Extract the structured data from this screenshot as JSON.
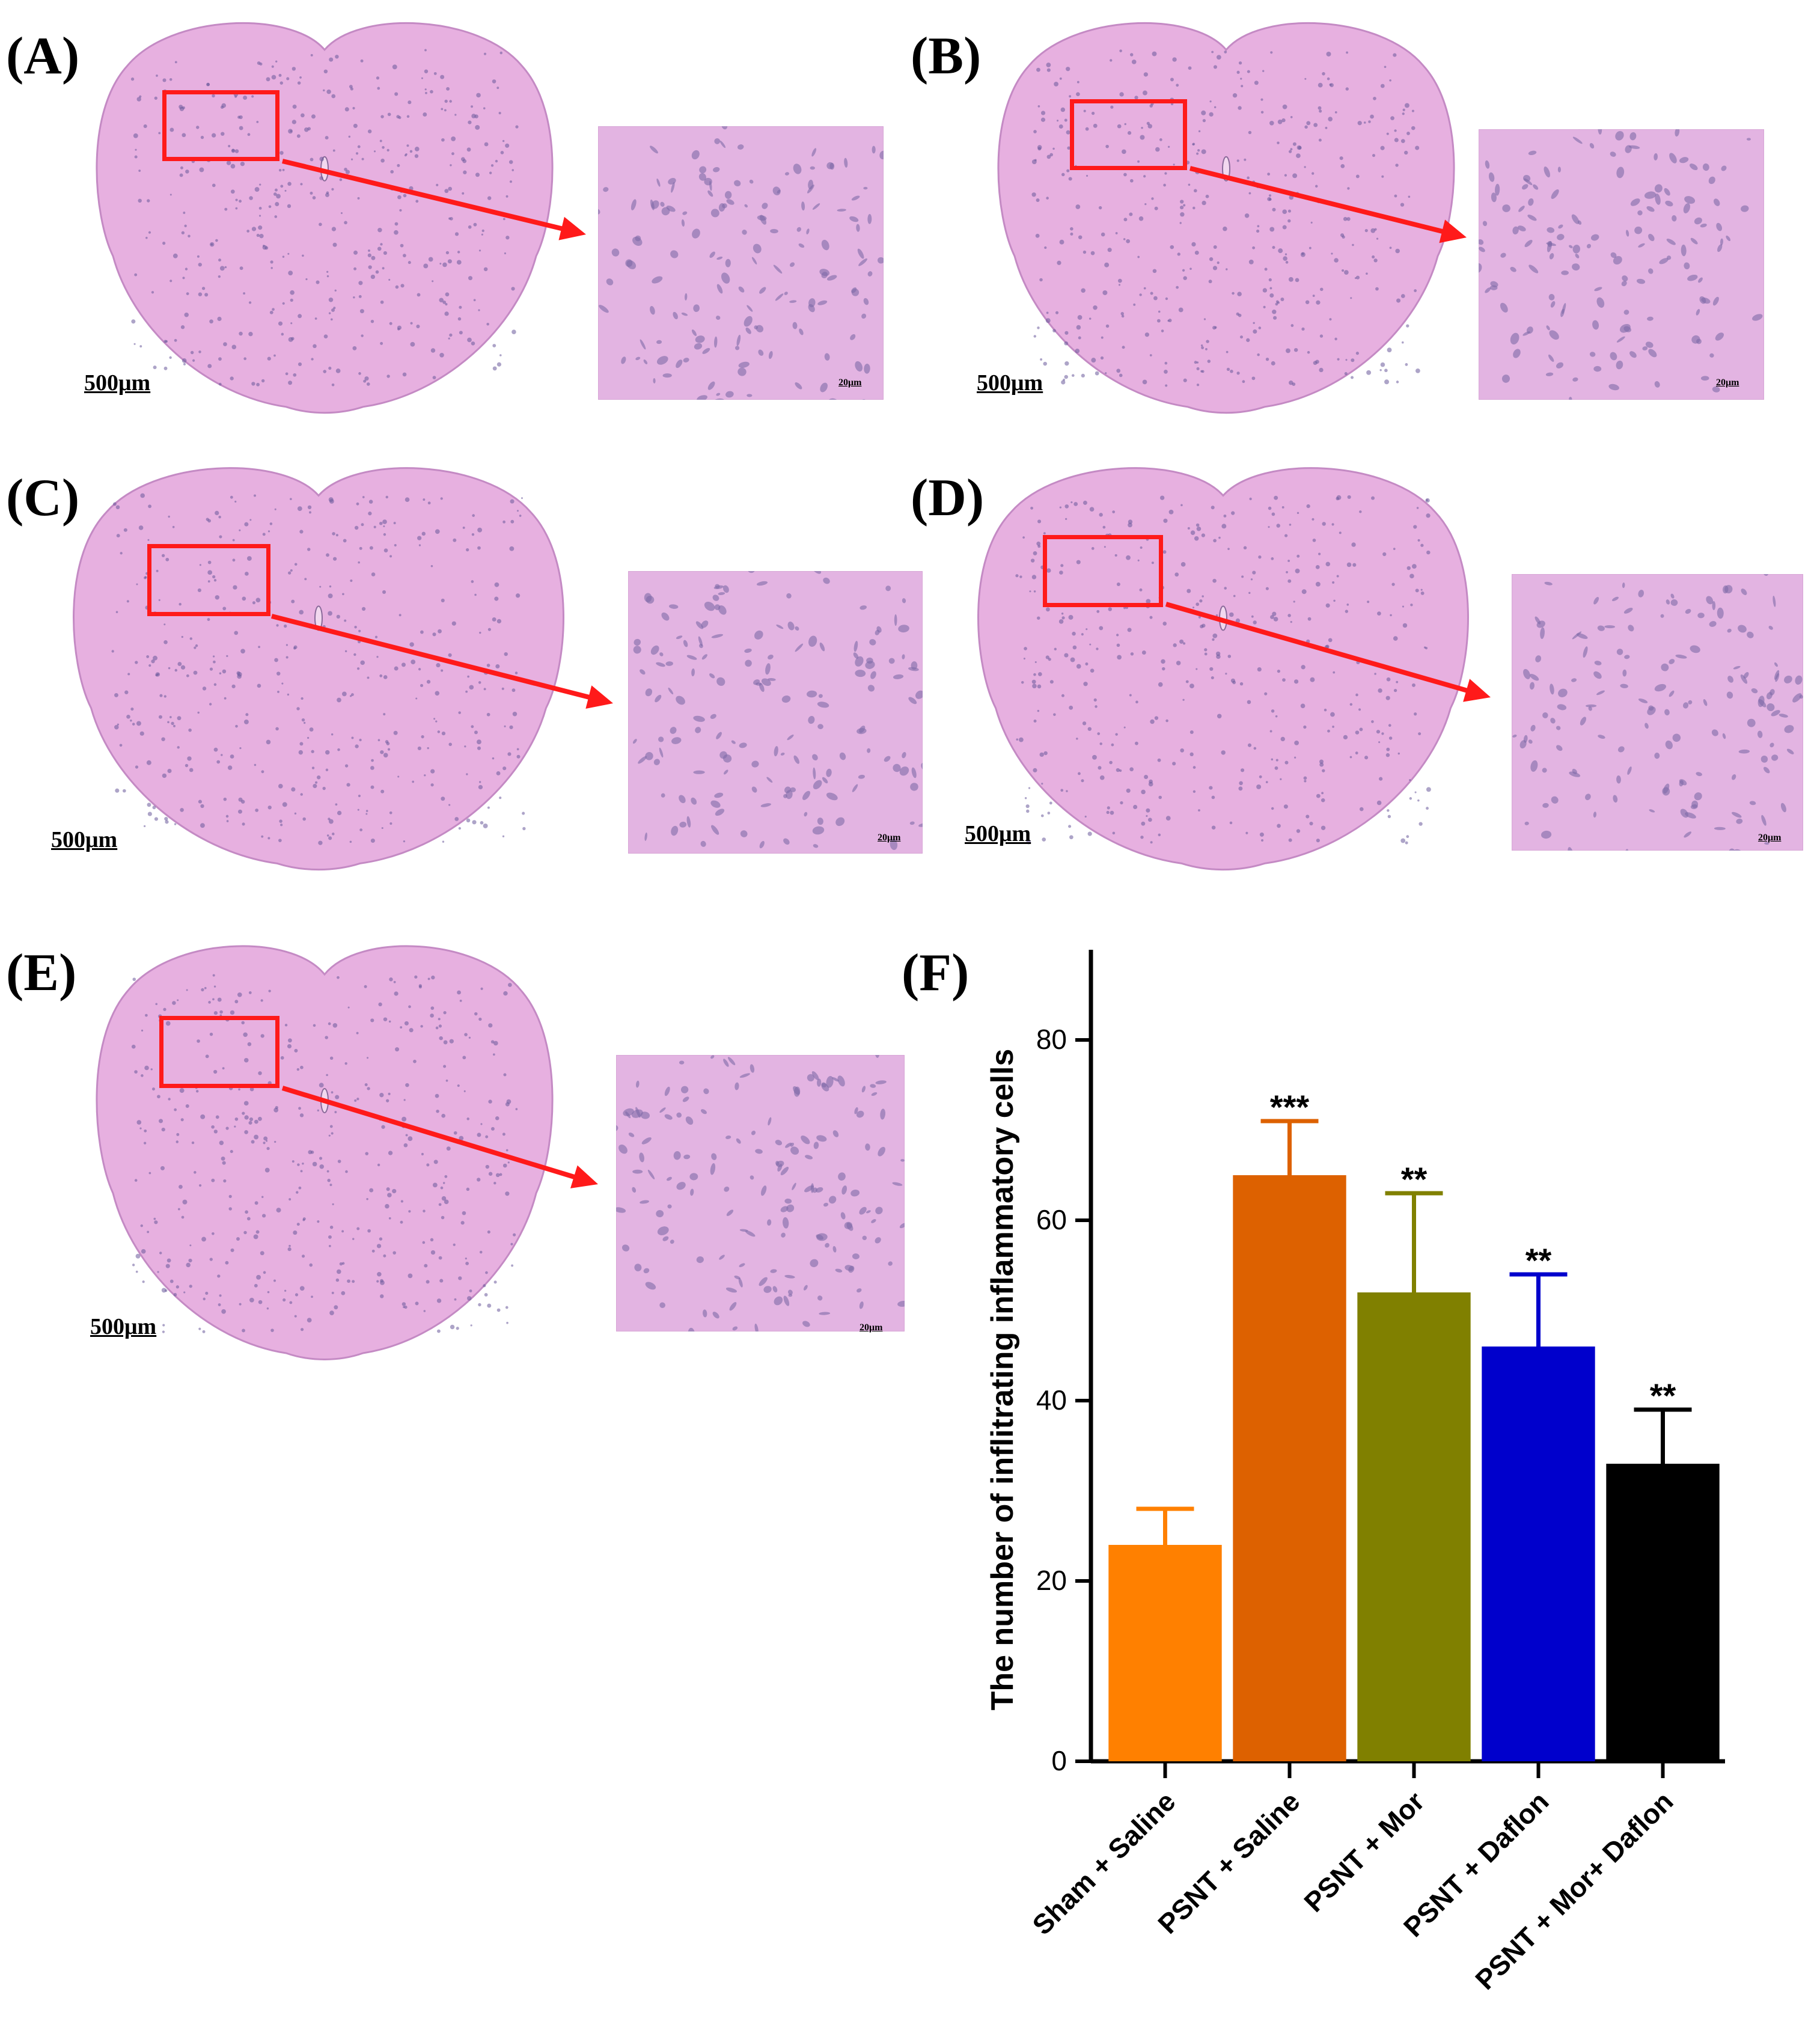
{
  "panels": [
    {
      "label": "(A)",
      "scale_main": "500μm",
      "scale_zoom": "20μm"
    },
    {
      "label": "(B)",
      "scale_main": "500μm",
      "scale_zoom": "20μm"
    },
    {
      "label": "(C)",
      "scale_main": "500μm",
      "scale_zoom": "20μm"
    },
    {
      "label": "(D)",
      "scale_main": "500μm",
      "scale_zoom": "20μm"
    },
    {
      "label": "(E)",
      "scale_main": "500μm",
      "scale_zoom": "20μm"
    }
  ],
  "chart_label": "(F)",
  "colors": {
    "tissue": "#e7b0e0",
    "tissue_edge": "#c48ac4",
    "highlight_box": "#ff1a1a",
    "arrow": "#ff1a1a"
  },
  "chart_data": {
    "type": "bar",
    "title": "",
    "xlabel": "",
    "ylabel": "The number of inflitrating inflammatory cells",
    "ylim": [
      0,
      90
    ],
    "yticks": [
      0,
      20,
      40,
      60,
      80
    ],
    "categories": [
      "Sham + Saline",
      "PSNT + Saline",
      "PSNT + Mor",
      "PSNT + Daflon",
      "PSNT + Mor+ Daflon"
    ],
    "values": [
      24,
      65,
      52,
      46,
      33
    ],
    "errors": [
      4,
      6,
      11,
      8,
      6
    ],
    "significance": [
      "",
      "***",
      "**",
      "**",
      "**"
    ],
    "bar_colors": [
      "#ff8000",
      "#dd6100",
      "#808000",
      "#0000cc",
      "#000000"
    ],
    "grid": false,
    "legend": "none"
  }
}
